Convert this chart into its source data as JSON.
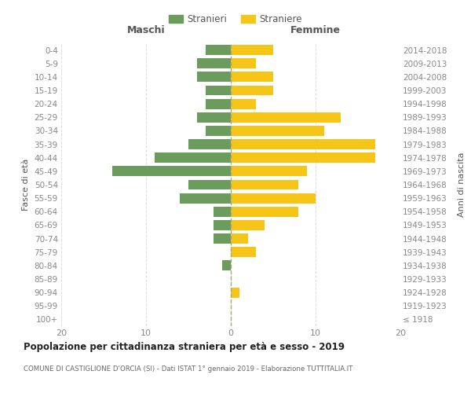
{
  "age_groups": [
    "100+",
    "95-99",
    "90-94",
    "85-89",
    "80-84",
    "75-79",
    "70-74",
    "65-69",
    "60-64",
    "55-59",
    "50-54",
    "45-49",
    "40-44",
    "35-39",
    "30-34",
    "25-29",
    "20-24",
    "15-19",
    "10-14",
    "5-9",
    "0-4"
  ],
  "birth_years": [
    "≤ 1918",
    "1919-1923",
    "1924-1928",
    "1929-1933",
    "1934-1938",
    "1939-1943",
    "1944-1948",
    "1949-1953",
    "1954-1958",
    "1959-1963",
    "1964-1968",
    "1969-1973",
    "1974-1978",
    "1979-1983",
    "1984-1988",
    "1989-1993",
    "1994-1998",
    "1999-2003",
    "2004-2008",
    "2009-2013",
    "2014-2018"
  ],
  "males": [
    0,
    0,
    0,
    0,
    1,
    0,
    2,
    2,
    2,
    6,
    5,
    14,
    9,
    5,
    3,
    4,
    3,
    3,
    4,
    4,
    3
  ],
  "females": [
    0,
    0,
    1,
    0,
    0,
    3,
    2,
    4,
    8,
    10,
    8,
    9,
    17,
    17,
    11,
    13,
    3,
    5,
    5,
    3,
    5
  ],
  "male_color": "#6b9c5e",
  "female_color": "#f5c518",
  "male_label": "Stranieri",
  "female_label": "Straniere",
  "title": "Popolazione per cittadinanza straniera per età e sesso - 2019",
  "subtitle": "COMUNE DI CASTIGLIONE D'ORCIA (SI) - Dati ISTAT 1° gennaio 2019 - Elaborazione TUTTITALIA.IT",
  "ylabel_left": "Fasce di età",
  "ylabel_right": "Anni di nascita",
  "xlabel_left": "Maschi",
  "xlabel_right": "Femmine",
  "xlim": 20,
  "bg_color": "#ffffff",
  "grid_color": "#dddddd",
  "axis_label_color": "#555555",
  "tick_color": "#888888"
}
